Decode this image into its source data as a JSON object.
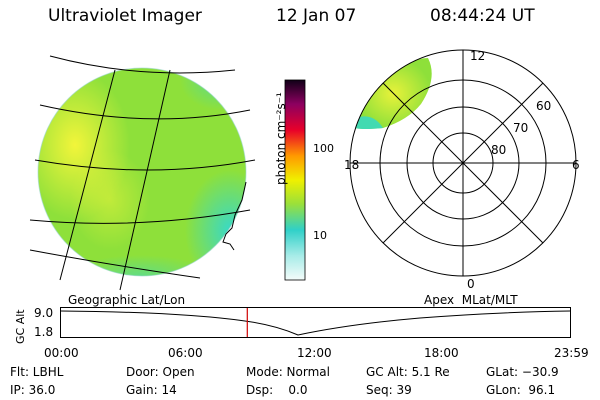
{
  "header": {
    "instrument": "Ultraviolet Imager",
    "date": "12 Jan 07",
    "time": "08:44:24 UT"
  },
  "colorbar": {
    "label": "photon cm⁻²s⁻¹",
    "ticks": [
      "100",
      "10"
    ]
  },
  "polar_plot": {
    "mlt_labels": [
      "12",
      "18",
      "6",
      "0"
    ],
    "lat_labels": [
      "60",
      "70",
      "80"
    ]
  },
  "timeline": {
    "left_title": "Geographic Lat/Lon",
    "right_title": "Apex  MLat/MLT",
    "ylabel": "GC Alt",
    "yticks": [
      "9.0",
      "1.8"
    ],
    "xticks": [
      "00:00",
      "06:00",
      "12:00",
      "18:00",
      "23:59"
    ],
    "current_time_fraction": 0.366
  },
  "info": {
    "filter": "Flt: LBHL",
    "ip": "IP: 36.0",
    "door": "Door: Open",
    "gain": "Gain: 14",
    "mode": "Mode: Normal",
    "dsp": "Dsp:    0.0",
    "gc_alt": "GC Alt: 5.1 Re",
    "seq": "Seq: 39",
    "glat": "GLat: −30.9",
    "glon": "GLon:  96.1"
  },
  "colors": {
    "aurora_green": "#8ee03a",
    "aurora_yellow": "#e8f23a",
    "aurora_cyan": "#30d8d0",
    "marker": "#d00000"
  }
}
